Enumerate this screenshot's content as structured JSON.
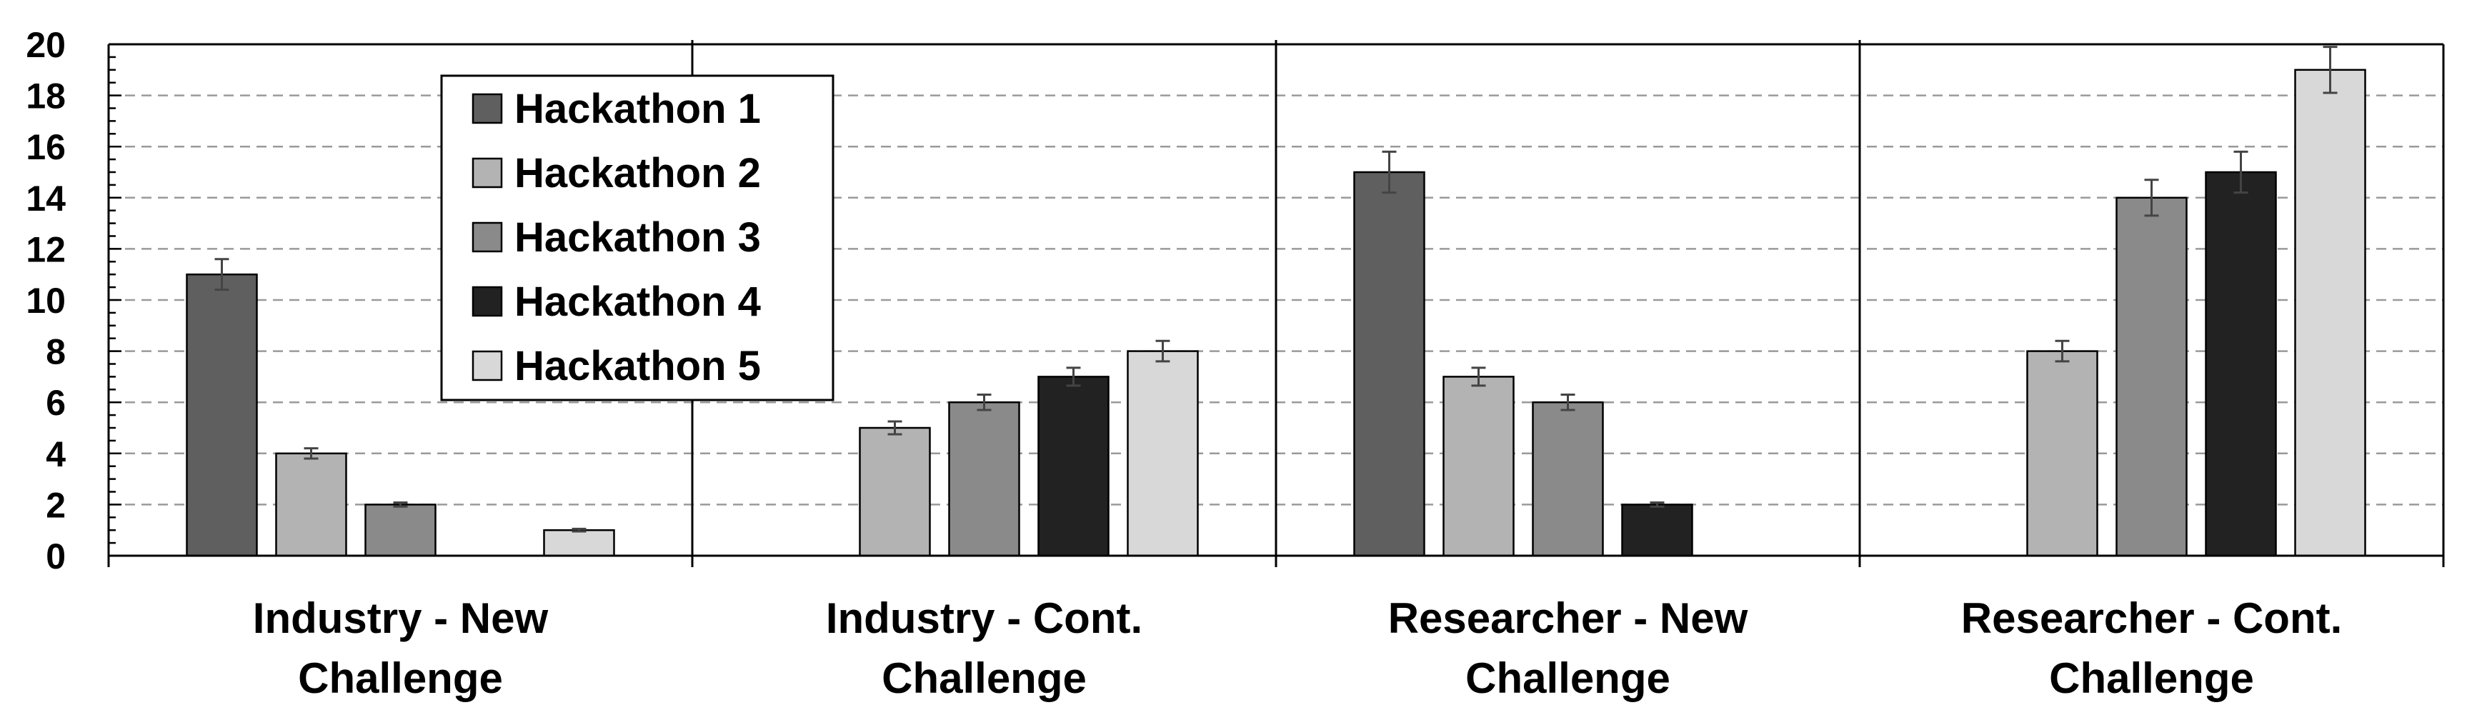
{
  "chart_data": {
    "type": "bar",
    "title": "",
    "xlabel": "",
    "ylabel": "",
    "ylim": [
      0,
      20
    ],
    "yticks": [
      0,
      2,
      4,
      6,
      8,
      10,
      12,
      14,
      16,
      18,
      20
    ],
    "grid": "horizontal-dashed",
    "legend_position": "top-left",
    "categories": [
      [
        "Industry - New",
        "Challenge"
      ],
      [
        "Industry - Cont.",
        "Challenge"
      ],
      [
        "Researcher - New",
        "Challenge"
      ],
      [
        "Researcher - Cont.",
        "Challenge"
      ]
    ],
    "series": [
      {
        "name": "Hackathon 1",
        "color": "#5f5f5f",
        "values": [
          11,
          null,
          15,
          null
        ],
        "errors": [
          0.6,
          null,
          0.8,
          null
        ]
      },
      {
        "name": "Hackathon 2",
        "color": "#b3b3b3",
        "values": [
          4,
          5,
          7,
          8
        ],
        "errors": [
          0.2,
          0.25,
          0.35,
          0.4
        ]
      },
      {
        "name": "Hackathon 3",
        "color": "#8a8a8a",
        "values": [
          2,
          6,
          6,
          14
        ],
        "errors": [
          0.08,
          0.3,
          0.3,
          0.7
        ]
      },
      {
        "name": "Hackathon 4",
        "color": "#222222",
        "values": [
          null,
          7,
          2,
          15
        ],
        "errors": [
          null,
          0.35,
          0.08,
          0.8
        ]
      },
      {
        "name": "Hackathon 5",
        "color": "#d8d8d8",
        "values": [
          1,
          8,
          null,
          19
        ],
        "errors": [
          0.05,
          0.4,
          null,
          0.9
        ]
      }
    ]
  }
}
